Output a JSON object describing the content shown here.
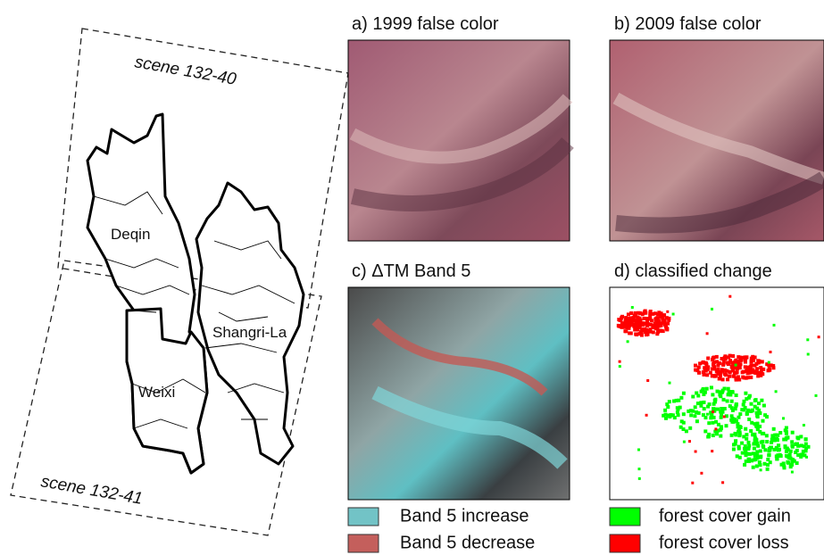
{
  "map": {
    "scenes": [
      "scene 132-40",
      "scene 132-41"
    ],
    "counties": [
      "Deqin",
      "Shangri-La",
      "Weixi"
    ]
  },
  "panels": [
    {
      "title": "a) 1999 false color"
    },
    {
      "title": "b) 2009 false color"
    },
    {
      "title": "c) ΔTM Band 5"
    },
    {
      "title": "d) classified change"
    }
  ],
  "legend": [
    {
      "label": "Band 5 increase",
      "color": "#72c3c6"
    },
    {
      "label": "Band 5 decrease",
      "color": "#c45f5c"
    },
    {
      "label": "forest cover gain",
      "color": "#00ff00"
    },
    {
      "label": "forest cover loss",
      "color": "#ff0000"
    }
  ]
}
